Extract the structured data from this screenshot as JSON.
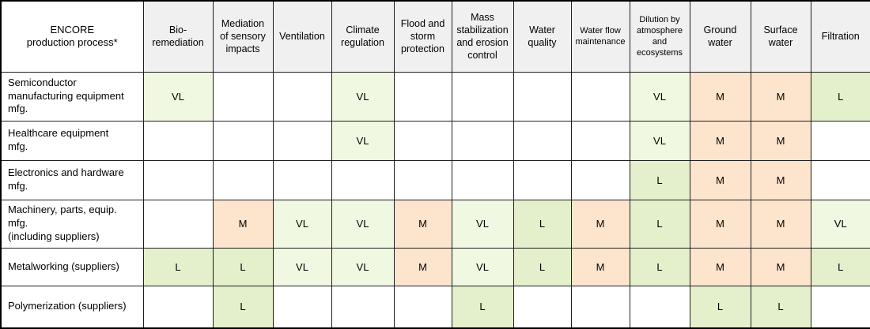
{
  "chart_data": {
    "type": "heatmap",
    "title": "ENCORE production process materiality matrix",
    "corner_header_lines": [
      "ENCORE",
      "production process*"
    ],
    "columns": [
      {
        "label": "Bio-remediation",
        "lines": [
          "Bio-",
          "remediation"
        ],
        "small": false
      },
      {
        "label": "Mediation of sensory impacts",
        "lines": [
          "Mediation",
          "of sensory",
          "impacts"
        ],
        "small": false
      },
      {
        "label": "Ventilation",
        "lines": [
          "Ventilation"
        ],
        "small": false
      },
      {
        "label": "Climate regulation",
        "lines": [
          "Climate",
          "regulation"
        ],
        "small": false
      },
      {
        "label": "Flood and storm protection",
        "lines": [
          "Flood and",
          "storm",
          "protection"
        ],
        "small": false
      },
      {
        "label": "Mass stabilization and erosion control",
        "lines": [
          "Mass",
          "stabilization",
          "and erosion",
          "control"
        ],
        "small": false
      },
      {
        "label": "Water quality",
        "lines": [
          "Water",
          "quality"
        ],
        "small": false
      },
      {
        "label": "Water flow maintenance",
        "lines": [
          "Water flow",
          "maintenance"
        ],
        "small": true
      },
      {
        "label": "Dilution by atmosphere and ecosystems",
        "lines": [
          "Dilution by",
          "atmosphere",
          "and",
          "ecosystems"
        ],
        "small": true
      },
      {
        "label": "Ground water",
        "lines": [
          "Ground",
          "water"
        ],
        "small": false
      },
      {
        "label": "Surface water",
        "lines": [
          "Surface",
          "water"
        ],
        "small": false
      },
      {
        "label": "Filtration",
        "lines": [
          "Filtration"
        ],
        "small": false
      }
    ],
    "rows": [
      {
        "process": "Semiconductor manufacturing equipment mfg.",
        "process_lines": [
          "Semiconductor",
          "manufacturing equipment",
          "mfg."
        ],
        "values": [
          "VL",
          "",
          "",
          "VL",
          "",
          "",
          "",
          "",
          "VL",
          "M",
          "M",
          "L"
        ]
      },
      {
        "process": "Healthcare equipment mfg.",
        "process_lines": [
          "Healthcare equipment",
          "mfg."
        ],
        "values": [
          "",
          "",
          "",
          "VL",
          "",
          "",
          "",
          "",
          "VL",
          "M",
          "M",
          ""
        ]
      },
      {
        "process": "Electronics and hardware mfg.",
        "process_lines": [
          "Electronics and hardware",
          "mfg."
        ],
        "values": [
          "",
          "",
          "",
          "",
          "",
          "",
          "",
          "",
          "L",
          "M",
          "M",
          ""
        ]
      },
      {
        "process": "Machinery, parts, equip. mfg. (including suppliers)",
        "process_lines": [
          "Machinery, parts, equip.",
          "mfg.",
          "(including suppliers)"
        ],
        "values": [
          "",
          "M",
          "VL",
          "VL",
          "M",
          "VL",
          "L",
          "M",
          "L",
          "M",
          "M",
          "VL"
        ]
      },
      {
        "process": "Metalworking (suppliers)",
        "process_lines": [
          "Metalworking (suppliers)"
        ],
        "values": [
          "L",
          "L",
          "VL",
          "VL",
          "M",
          "VL",
          "L",
          "M",
          "L",
          "M",
          "M",
          "L"
        ]
      },
      {
        "process": "Polymerization (suppliers)",
        "process_lines": [
          "Polymerization (suppliers)"
        ],
        "values": [
          "",
          "L",
          "",
          "",
          "",
          "L",
          "",
          "",
          "",
          "L",
          "L",
          ""
        ]
      }
    ],
    "levels": {
      "VL": "#f1f8e2",
      "L": "#e4f0cb",
      "M": "#fce4cd"
    },
    "header_bg": "#f0f0f0",
    "legend_position": "none",
    "grid": true
  }
}
